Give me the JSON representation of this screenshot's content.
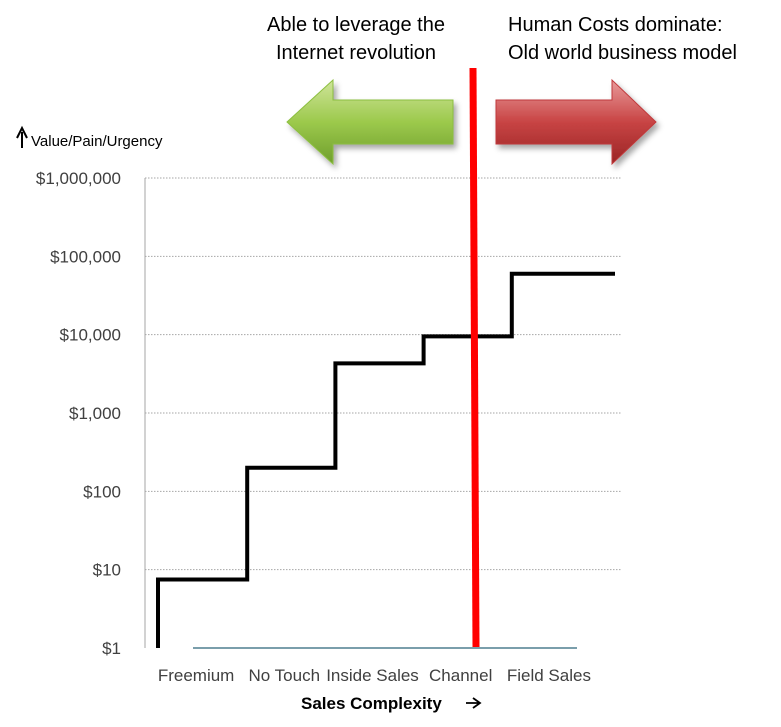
{
  "colors": {
    "step_line": "#000000",
    "divider": "#ff0000",
    "left_arrow": "#8cbf3f",
    "right_arrow": "#c0393b",
    "grid": "#a6a6a6",
    "baseline": "#4f7f8f"
  },
  "icons": {
    "y_arrow": "up-arrow-icon",
    "x_arrow": "right-arrow-icon",
    "left_banner_arrow": "left-arrow-icon",
    "right_banner_arrow": "right-arrow-icon"
  },
  "annotations": {
    "left": [
      "Able to leverage the",
      "Internet revolution"
    ],
    "right": [
      "Human Costs dominate:",
      "Old world business model"
    ]
  },
  "chart_data": {
    "type": "line",
    "step": true,
    "ylabel": "Value/Pain/Urgency",
    "xlabel": "Sales Complexity",
    "y_scale": "log",
    "ylim": [
      1,
      1000000
    ],
    "categories": [
      "Freemium",
      "No Touch",
      "Inside Sales",
      "Channel",
      "Field Sales"
    ],
    "y_ticks": [
      {
        "value": 1,
        "label": "$1"
      },
      {
        "value": 10,
        "label": "$10"
      },
      {
        "value": 100,
        "label": "$100"
      },
      {
        "value": 1000,
        "label": "$1,000"
      },
      {
        "value": 10000,
        "label": "$10,000"
      },
      {
        "value": 100000,
        "label": "$100,000"
      },
      {
        "value": 1000000,
        "label": "$1,000,000"
      }
    ],
    "series": [
      {
        "values": [
          7.5,
          200,
          4300,
          9500,
          60000
        ]
      }
    ],
    "divider_between": [
      "Channel",
      "Field Sales"
    ],
    "grid": true
  }
}
